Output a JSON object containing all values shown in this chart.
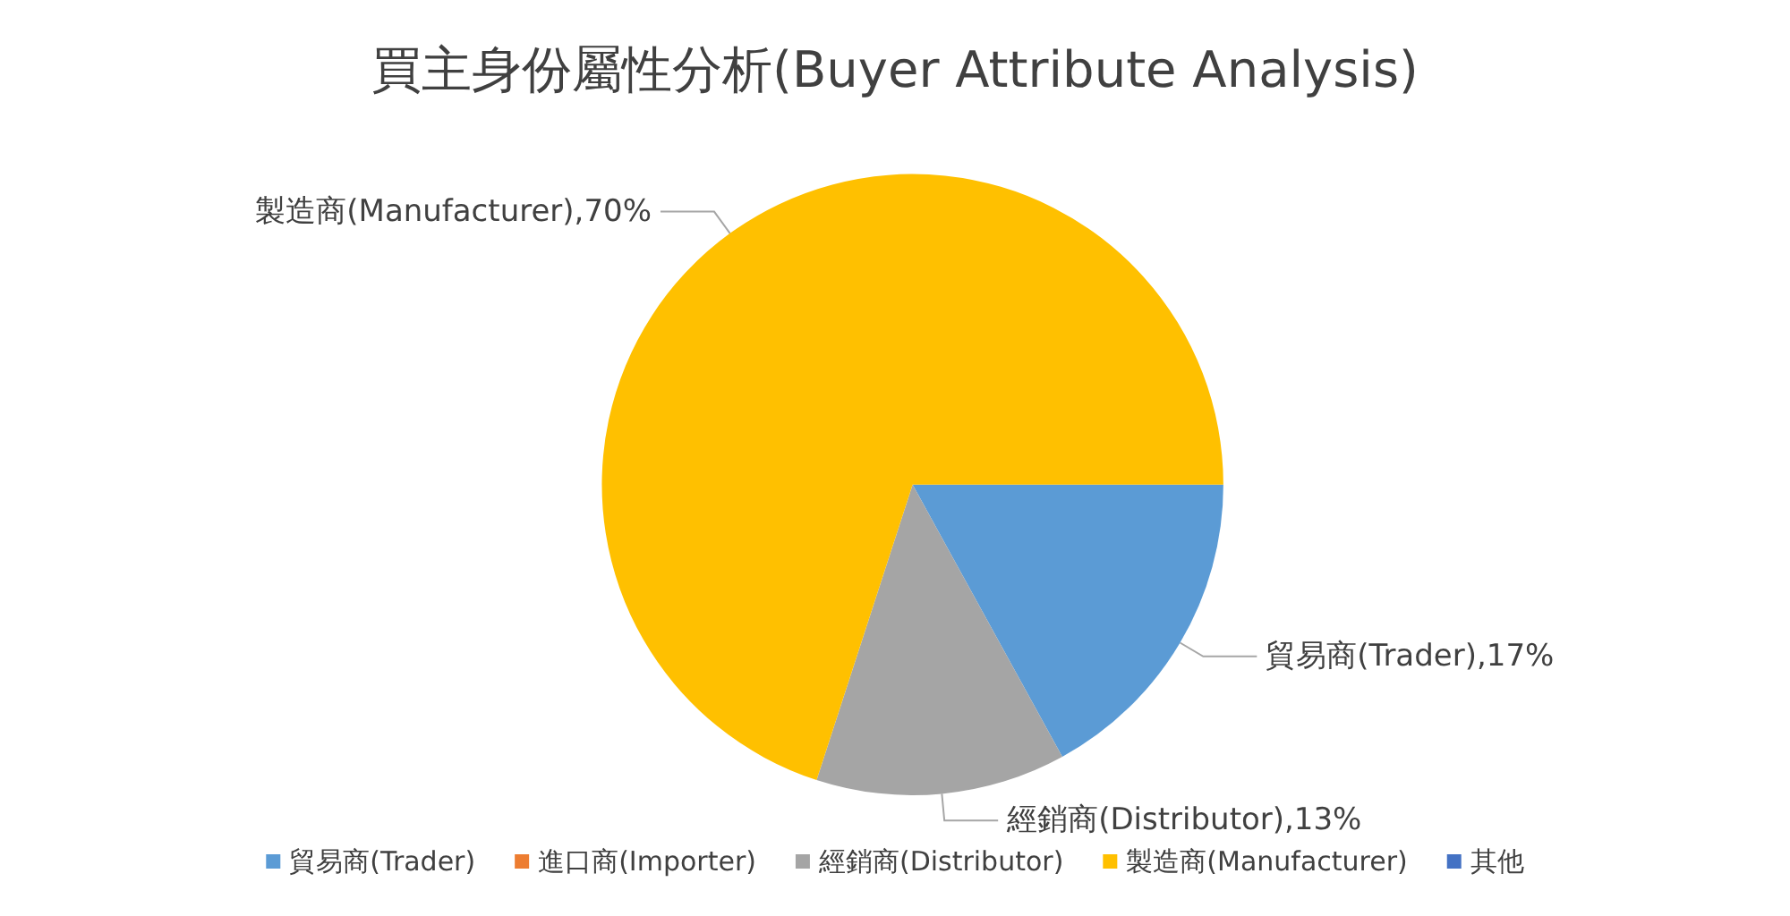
{
  "chart_data": {
    "type": "pie",
    "title": "買主身份屬性分析(Buyer Attribute Analysis)",
    "categories": [
      "貿易商(Trader)",
      "進口商(Importer)",
      "經銷商(Distributor)",
      "製造商(Manufacturer)",
      "其他"
    ],
    "values": [
      17,
      0,
      13,
      70,
      0
    ],
    "colors": [
      "#5b9bd5",
      "#ed7d31",
      "#a5a5a5",
      "#ffc000",
      "#4472c4"
    ],
    "value_labels": [
      ",17%",
      null,
      ",13%",
      ",70%",
      null
    ],
    "legend": "bottom"
  }
}
